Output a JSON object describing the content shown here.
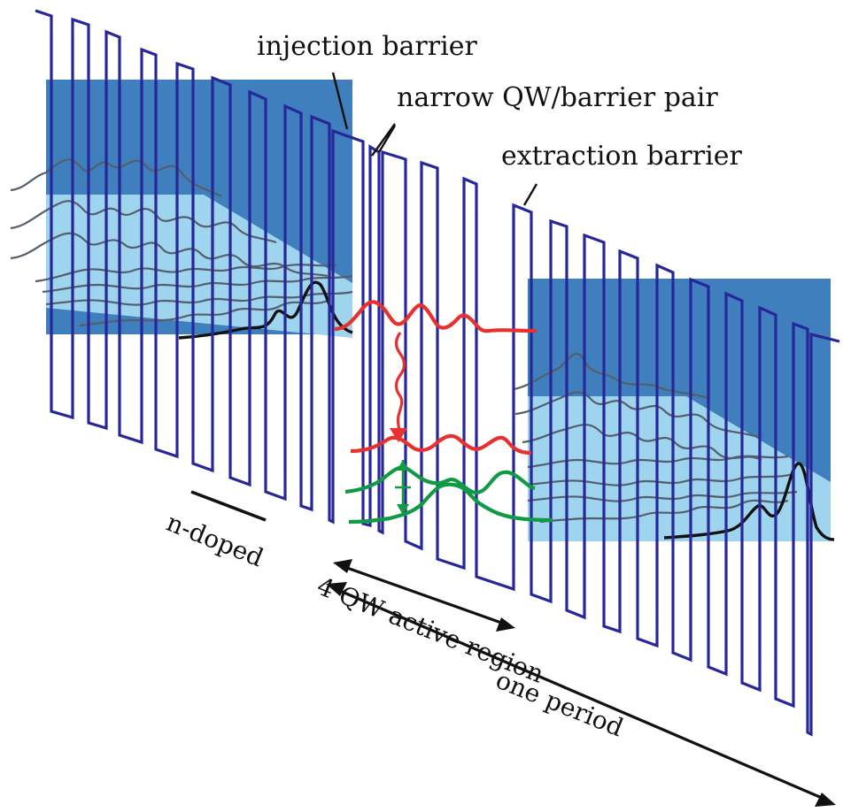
{
  "labels": {
    "injection_barrier": "injection barrier",
    "narrow_pair": "narrow QW/barrier pair",
    "extraction_barrier": "extraction barrier",
    "n_doped": "n-doped",
    "active_region": "4 QW active region",
    "one_period": "one period"
  },
  "colors": {
    "band_edge": "#27279a",
    "injector_dark": "#3f7fbd",
    "injector_light": "#9fd4ee",
    "upper_state": "#e8302f",
    "lower_states": "#109a43",
    "ground_state": "#111111",
    "wavefunction": "#555e6a"
  }
}
